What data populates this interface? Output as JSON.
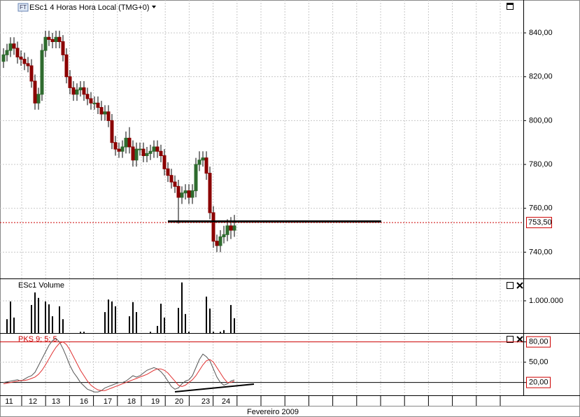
{
  "chart_data": [
    {
      "type": "candlestick",
      "title": "ESc1 4 Horas Hora Local (TMG+0)",
      "badge": "FT",
      "up_color": "#2e6b2e",
      "down_color": "#8b0000",
      "open": [
        827,
        830,
        832,
        835,
        833,
        829,
        828,
        826,
        825,
        818,
        808,
        812,
        832,
        838,
        837,
        836,
        838,
        836,
        830,
        820,
        815,
        812,
        814,
        815,
        812,
        810,
        808,
        808,
        806,
        803,
        804,
        800,
        790,
        787,
        786,
        788,
        792,
        788,
        782,
        787,
        787,
        784,
        785,
        786,
        788,
        786,
        784,
        778,
        775,
        772,
        770,
        765,
        767,
        768,
        765,
        768,
        780,
        782,
        783,
        776,
        758,
        745,
        743,
        747,
        748,
        752,
        750
      ],
      "high": [
        833,
        835,
        838,
        838,
        836,
        832,
        831,
        829,
        828,
        821,
        815,
        835,
        841,
        841,
        840,
        841,
        841,
        839,
        833,
        823,
        818,
        817,
        818,
        818,
        815,
        813,
        811,
        811,
        809,
        807,
        807,
        803,
        793,
        790,
        791,
        795,
        797,
        791,
        790,
        790,
        790,
        788,
        789,
        791,
        791,
        789,
        787,
        781,
        778,
        775,
        773,
        770,
        771,
        771,
        771,
        783,
        786,
        786,
        786,
        779,
        761,
        748,
        750,
        752,
        755,
        756,
        757
      ],
      "low": [
        824,
        827,
        829,
        830,
        826,
        825,
        823,
        822,
        815,
        805,
        805,
        809,
        829,
        834,
        833,
        833,
        833,
        827,
        817,
        812,
        809,
        809,
        811,
        809,
        807,
        805,
        805,
        803,
        800,
        800,
        797,
        787,
        784,
        783,
        783,
        785,
        785,
        779,
        779,
        784,
        781,
        781,
        782,
        783,
        783,
        781,
        775,
        772,
        769,
        767,
        753,
        762,
        764,
        762,
        762,
        765,
        777,
        779,
        773,
        755,
        742,
        740,
        740,
        744,
        745,
        746,
        747
      ],
      "close": [
        830,
        832,
        835,
        833,
        829,
        828,
        826,
        825,
        818,
        808,
        812,
        832,
        838,
        837,
        836,
        838,
        836,
        830,
        820,
        815,
        812,
        814,
        815,
        812,
        810,
        808,
        808,
        806,
        803,
        804,
        800,
        790,
        787,
        786,
        788,
        792,
        788,
        782,
        787,
        787,
        784,
        785,
        786,
        788,
        786,
        784,
        778,
        775,
        772,
        770,
        765,
        767,
        768,
        765,
        768,
        780,
        782,
        783,
        776,
        758,
        745,
        743,
        747,
        748,
        752,
        750,
        752
      ],
      "ylim": [
        728,
        855
      ],
      "yticks": [
        {
          "value": 740,
          "label": "740,00"
        },
        {
          "value": 760,
          "label": "760,00"
        },
        {
          "value": 780,
          "label": "780,00"
        },
        {
          "value": 800,
          "label": "800,00"
        },
        {
          "value": 820,
          "label": "820,00"
        },
        {
          "value": 840,
          "label": "840,00"
        }
      ],
      "grid": true,
      "levels": [
        {
          "value": 754,
          "color": "#000000"
        }
      ],
      "last_price": {
        "value": 753.5,
        "label": "753,50",
        "color": "#cc0000"
      }
    },
    {
      "type": "bar",
      "title": "ESc1 Volume",
      "color": "#000000",
      "values": [
        0,
        430000,
        980000,
        480000,
        0,
        0,
        0,
        0,
        870000,
        1260000,
        1090000,
        0,
        980000,
        890000,
        520000,
        0,
        830000,
        430000,
        0,
        0,
        0,
        0,
        40000,
        40000,
        0,
        0,
        0,
        0,
        0,
        650000,
        1040000,
        980000,
        830000,
        0,
        0,
        0,
        520000,
        960000,
        650000,
        0,
        0,
        0,
        40000,
        0,
        220000,
        910000,
        480000,
        0,
        0,
        0,
        780000,
        1570000,
        590000,
        40000,
        0,
        0,
        0,
        0,
        1130000,
        760000,
        40000,
        0,
        40000,
        90000,
        0,
        870000,
        460000
      ],
      "ylim": [
        0,
        1650000
      ],
      "yticks": [
        {
          "value": 1000000,
          "label": "1.000.000"
        }
      ],
      "grid": true
    },
    {
      "type": "line",
      "title": "PKS 9; 5; 5",
      "title_color": "#cc0000",
      "series": [
        {
          "color": "#555555",
          "values": [
            20,
            21,
            22,
            23,
            24,
            22,
            25,
            28,
            30,
            35,
            45,
            55,
            65,
            75,
            82,
            85,
            80,
            70,
            58,
            45,
            35,
            28,
            20,
            15,
            10,
            8,
            6,
            6,
            8,
            12,
            14,
            16,
            18,
            20,
            20,
            22,
            26,
            30,
            28,
            30,
            34,
            38,
            40,
            42,
            40,
            36,
            30,
            22,
            14,
            10,
            12,
            18,
            22,
            24,
            30,
            42,
            54,
            62,
            58,
            52,
            40,
            28,
            20,
            16,
            18,
            22,
            24
          ]
        },
        {
          "color": "#e03030",
          "values": [
            18,
            19,
            20,
            21,
            22,
            23,
            23,
            24,
            26,
            28,
            32,
            38,
            46,
            55,
            64,
            72,
            78,
            80,
            76,
            68,
            58,
            48,
            38,
            30,
            22,
            16,
            12,
            9,
            8,
            8,
            10,
            12,
            14,
            16,
            18,
            20,
            22,
            24,
            26,
            28,
            30,
            32,
            35,
            38,
            40,
            40,
            38,
            34,
            28,
            22,
            16,
            14,
            16,
            20,
            24,
            30,
            38,
            46,
            52,
            54,
            50,
            42,
            34,
            26,
            20,
            20,
            22
          ]
        }
      ],
      "ylim": [
        0,
        91
      ],
      "yticks": [
        {
          "value": 20,
          "label": "20,00"
        },
        {
          "value": 50,
          "label": "50,00"
        },
        {
          "value": 80,
          "label": "80,00"
        }
      ],
      "boxed_ticks": [
        20,
        80
      ],
      "grid": true
    }
  ],
  "time_axis": {
    "labels": [
      "11",
      "12",
      "13",
      "16",
      "17",
      "18",
      "19",
      "20",
      "23",
      "24"
    ],
    "title": "Fevereiro 2009"
  }
}
